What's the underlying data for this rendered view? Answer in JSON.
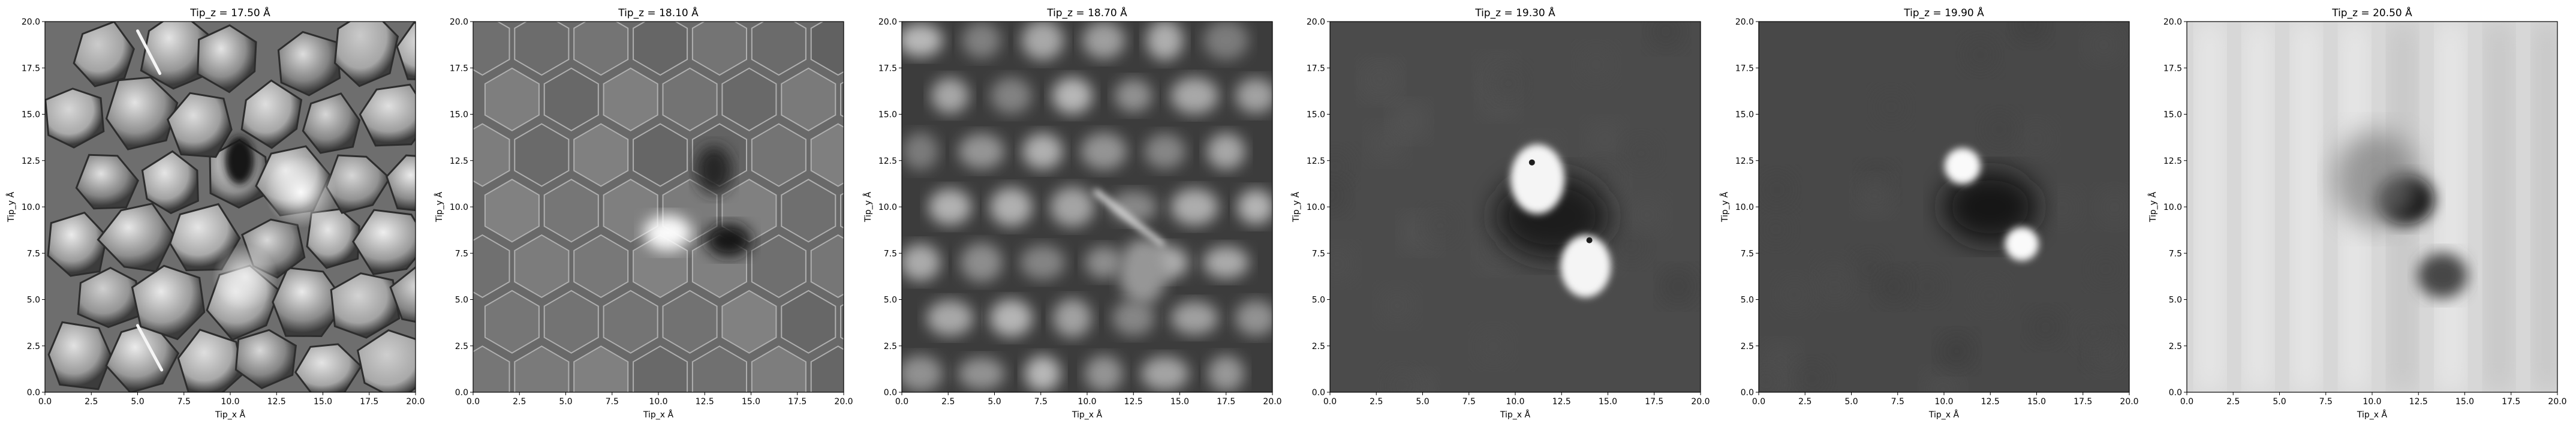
{
  "chart_data": [
    {
      "type": "heatmap",
      "title": "Tip_z = 17.50 Å",
      "xlabel": "Tip_x Å",
      "ylabel": "Tip_y Å",
      "xlim": [
        0,
        20
      ],
      "ylim": [
        0,
        20
      ],
      "colormap": "gray",
      "xticks": [
        "0.0",
        "2.5",
        "5.0",
        "7.5",
        "10.0",
        "12.5",
        "15.0",
        "17.5",
        "20.0"
      ],
      "yticks": [
        "0.0",
        "2.5",
        "5.0",
        "7.5",
        "10.0",
        "12.5",
        "15.0",
        "17.5",
        "20.0"
      ]
    },
    {
      "type": "heatmap",
      "title": "Tip_z = 18.10 Å",
      "xlabel": "Tip_x Å",
      "ylabel": "Tip_y Å",
      "xlim": [
        0,
        20
      ],
      "ylim": [
        0,
        20
      ],
      "colormap": "gray",
      "xticks": [
        "0.0",
        "2.5",
        "5.0",
        "7.5",
        "10.0",
        "12.5",
        "15.0",
        "17.5",
        "20.0"
      ],
      "yticks": [
        "0.0",
        "2.5",
        "5.0",
        "7.5",
        "10.0",
        "12.5",
        "15.0",
        "17.5",
        "20.0"
      ]
    },
    {
      "type": "heatmap",
      "title": "Tip_z = 18.70 Å",
      "xlabel": "Tip_x Å",
      "ylabel": "Tip_y Å",
      "xlim": [
        0,
        20
      ],
      "ylim": [
        0,
        20
      ],
      "colormap": "gray",
      "xticks": [
        "0.0",
        "2.5",
        "5.0",
        "7.5",
        "10.0",
        "12.5",
        "15.0",
        "17.5",
        "20.0"
      ],
      "yticks": [
        "0.0",
        "2.5",
        "5.0",
        "7.5",
        "10.0",
        "12.5",
        "15.0",
        "17.5",
        "20.0"
      ]
    },
    {
      "type": "heatmap",
      "title": "Tip_z = 19.30 Å",
      "xlabel": "Tip_x Å",
      "ylabel": "Tip_y Å",
      "xlim": [
        0,
        20
      ],
      "ylim": [
        0,
        20
      ],
      "colormap": "gray",
      "xticks": [
        "0.0",
        "2.5",
        "5.0",
        "7.5",
        "10.0",
        "12.5",
        "15.0",
        "17.5",
        "20.0"
      ],
      "yticks": [
        "0.0",
        "2.5",
        "5.0",
        "7.5",
        "10.0",
        "12.5",
        "15.0",
        "17.5",
        "20.0"
      ]
    },
    {
      "type": "heatmap",
      "title": "Tip_z = 19.90 Å",
      "xlabel": "Tip_x Å",
      "ylabel": "Tip_y Å",
      "xlim": [
        0,
        20
      ],
      "ylim": [
        0,
        20
      ],
      "colormap": "gray",
      "xticks": [
        "0.0",
        "2.5",
        "5.0",
        "7.5",
        "10.0",
        "12.5",
        "15.0",
        "17.5",
        "20.0"
      ],
      "yticks": [
        "0.0",
        "2.5",
        "5.0",
        "7.5",
        "10.0",
        "12.5",
        "15.0",
        "17.5",
        "20.0"
      ]
    },
    {
      "type": "heatmap",
      "title": "Tip_z = 20.50 Å",
      "xlabel": "Tip_x Å",
      "ylabel": "Tip_y Å",
      "xlim": [
        0,
        20
      ],
      "ylim": [
        0,
        20
      ],
      "colormap": "gray",
      "xticks": [
        "0.0",
        "2.5",
        "5.0",
        "7.5",
        "10.0",
        "12.5",
        "15.0",
        "17.5",
        "20.0"
      ],
      "yticks": [
        "0.0",
        "2.5",
        "5.0",
        "7.5",
        "10.0",
        "12.5",
        "15.0",
        "17.5",
        "20.0"
      ]
    }
  ]
}
